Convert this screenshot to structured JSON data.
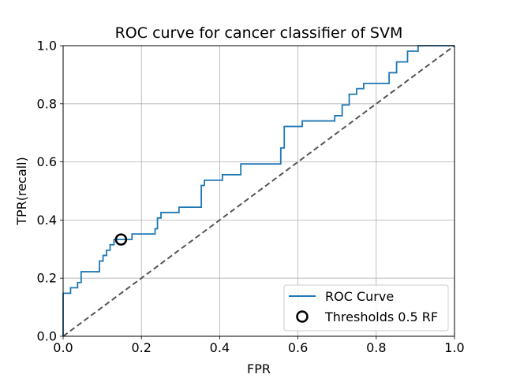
{
  "chart_data": {
    "type": "line",
    "title": "ROC curve for cancer classifier of SVM",
    "xlabel": "FPR",
    "ylabel": "TPR(recall)",
    "xlim": [
      0.0,
      1.0
    ],
    "ylim": [
      0.0,
      1.0
    ],
    "xticks": [
      "0.0",
      "0.2",
      "0.4",
      "0.6",
      "0.8",
      "1.0"
    ],
    "yticks": [
      "0.0",
      "0.2",
      "0.4",
      "0.6",
      "0.8",
      "1.0"
    ],
    "grid": true,
    "legend_position": "lower-right",
    "series": [
      {
        "name": "ROC Curve",
        "kind": "step-line",
        "color": "#1f77b4",
        "x": [
          0.0,
          0.0,
          0.019,
          0.019,
          0.037,
          0.037,
          0.046,
          0.046,
          0.093,
          0.093,
          0.102,
          0.102,
          0.111,
          0.111,
          0.12,
          0.12,
          0.13,
          0.13,
          0.176,
          0.176,
          0.235,
          0.235,
          0.241,
          0.241,
          0.25,
          0.25,
          0.296,
          0.296,
          0.353,
          0.353,
          0.361,
          0.361,
          0.407,
          0.407,
          0.454,
          0.454,
          0.556,
          0.556,
          0.565,
          0.565,
          0.611,
          0.611,
          0.694,
          0.694,
          0.713,
          0.713,
          0.731,
          0.731,
          0.75,
          0.75,
          0.768,
          0.768,
          0.833,
          0.833,
          0.852,
          0.852,
          0.88,
          0.88,
          0.907,
          0.907,
          1.0
        ],
        "y": [
          0.0,
          0.148,
          0.148,
          0.167,
          0.167,
          0.185,
          0.185,
          0.222,
          0.222,
          0.259,
          0.259,
          0.278,
          0.278,
          0.296,
          0.296,
          0.315,
          0.315,
          0.333,
          0.333,
          0.352,
          0.352,
          0.37,
          0.37,
          0.407,
          0.407,
          0.426,
          0.426,
          0.444,
          0.444,
          0.519,
          0.519,
          0.537,
          0.537,
          0.556,
          0.556,
          0.593,
          0.593,
          0.648,
          0.648,
          0.722,
          0.722,
          0.741,
          0.741,
          0.759,
          0.759,
          0.796,
          0.796,
          0.833,
          0.833,
          0.852,
          0.852,
          0.87,
          0.87,
          0.907,
          0.907,
          0.944,
          0.944,
          0.981,
          0.981,
          1.0,
          1.0
        ]
      },
      {
        "name": "",
        "kind": "diagonal",
        "color": "#555555",
        "x": [
          0.0,
          1.0
        ],
        "y": [
          0.0,
          1.0
        ]
      },
      {
        "name": "Thresholds 0.5 RF",
        "kind": "marker",
        "color": "#000000",
        "x": [
          0.148
        ],
        "y": [
          0.333
        ]
      }
    ]
  }
}
